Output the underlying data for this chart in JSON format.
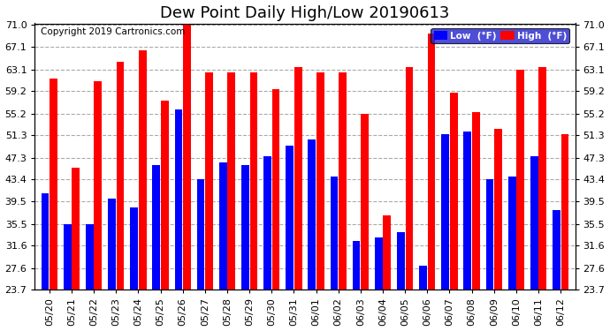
{
  "title": "Dew Point Daily High/Low 20190613",
  "copyright": "Copyright 2019 Cartronics.com",
  "dates": [
    "05/20",
    "05/21",
    "05/22",
    "05/23",
    "05/24",
    "05/25",
    "05/26",
    "05/27",
    "05/28",
    "05/29",
    "05/30",
    "05/31",
    "06/01",
    "06/02",
    "06/03",
    "06/04",
    "06/05",
    "06/06",
    "06/07",
    "06/08",
    "06/09",
    "06/10",
    "06/11",
    "06/12"
  ],
  "lows": [
    41.0,
    35.5,
    35.5,
    40.0,
    38.5,
    46.0,
    56.0,
    43.5,
    46.5,
    46.0,
    47.5,
    49.5,
    50.5,
    44.0,
    32.5,
    33.0,
    34.0,
    28.0,
    51.5,
    52.0,
    43.5,
    44.0,
    47.5,
    38.0
  ],
  "highs": [
    61.5,
    45.5,
    61.0,
    64.5,
    66.5,
    57.5,
    71.5,
    62.5,
    62.5,
    62.5,
    59.5,
    63.5,
    62.5,
    62.5,
    55.2,
    37.0,
    63.5,
    69.5,
    59.0,
    55.5,
    52.5,
    63.0,
    63.5,
    51.5
  ],
  "ylim_min": 23.7,
  "ylim_max": 71.0,
  "yticks": [
    23.7,
    27.6,
    31.6,
    35.5,
    39.5,
    43.4,
    47.3,
    51.3,
    55.2,
    59.2,
    63.1,
    67.1,
    71.0
  ],
  "bar_color_low": "#0000ff",
  "bar_color_high": "#ff0000",
  "bg_color": "#ffffff",
  "plot_bg_color": "#ffffff",
  "grid_color": "#aaaaaa",
  "title_fontsize": 13,
  "tick_fontsize": 8,
  "copyright_fontsize": 7.5
}
